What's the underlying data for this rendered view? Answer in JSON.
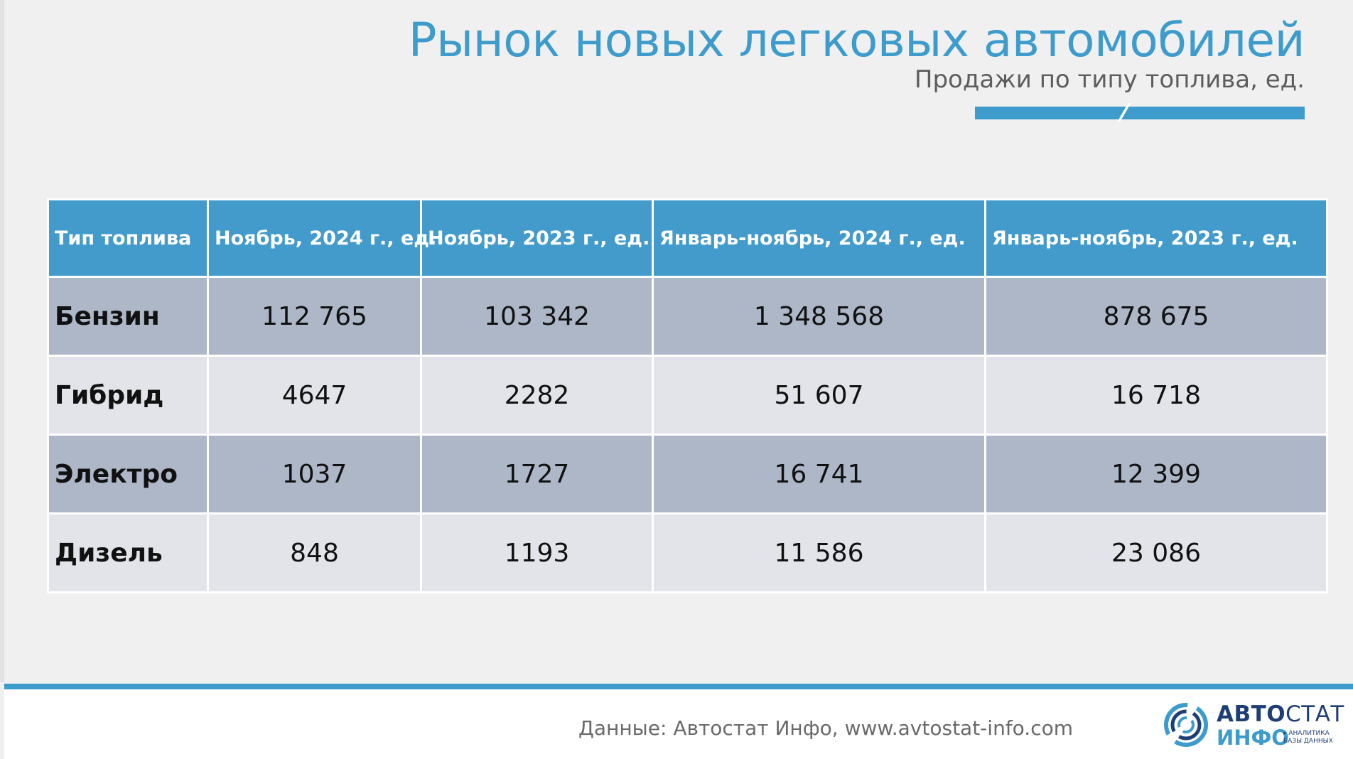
{
  "header": {
    "title": "Рынок новых легковых автомобилей",
    "subtitle": "Продажи по типу топлива, ед."
  },
  "table": {
    "columns": [
      "Тип топлива",
      "Ноябрь, 2024 г., ед.",
      "Ноябрь, 2023 г., ед.",
      "Январь-ноябрь, 2024 г., ед.",
      "Январь-ноябрь, 2023 г., ед."
    ],
    "rows": [
      {
        "fuel": "Бензин",
        "nov_2024": "112 765",
        "nov_2023": "103 342",
        "jan_nov_2024": "1 348 568",
        "jan_nov_2023": "878 675"
      },
      {
        "fuel": "Гибрид",
        "nov_2024": "4647",
        "nov_2023": "2282",
        "jan_nov_2024": "51 607",
        "jan_nov_2023": "16 718"
      },
      {
        "fuel": "Электро",
        "nov_2024": "1037",
        "nov_2023": "1727",
        "jan_nov_2024": "16 741",
        "jan_nov_2023": "12 399"
      },
      {
        "fuel": "Дизель",
        "nov_2024": "848",
        "nov_2023": "1193",
        "jan_nov_2024": "11 586",
        "jan_nov_2023": "23 086"
      }
    ]
  },
  "footer": {
    "source": "Данные: Автостат Инфо, www.avtostat-info.com",
    "logo": {
      "line1_bold": "АВТО",
      "line1_regular": "СТАТ",
      "line2": "ИНФО",
      "tag_line1": "▸ АНАЛИТИКА",
      "tag_line2": "БАЗЫ ДАННЫХ"
    }
  },
  "colors": {
    "accent": "#3d9ccc",
    "header_cell": "#429bcb",
    "row_dark": "#aeb7c8",
    "row_light": "#e3e4e9",
    "logo_dark": "#1d3f76"
  }
}
